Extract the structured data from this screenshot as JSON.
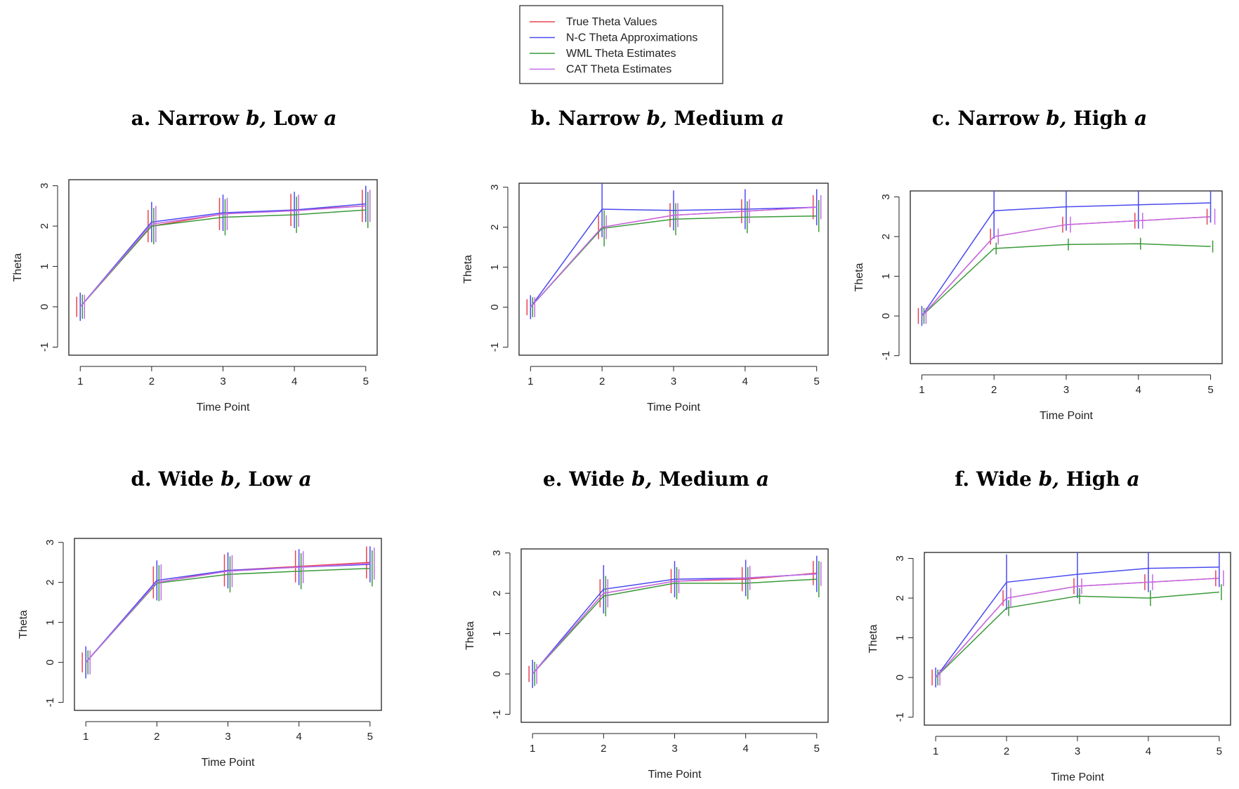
{
  "legend": [
    {
      "name": "True Theta Values",
      "color": "#e8434f"
    },
    {
      "name": "N-C Theta Approximations",
      "color": "#4a4af0"
    },
    {
      "name": "WML Theta Estimates",
      "color": "#3a9a3a"
    },
    {
      "name": "CAT Theta Estimates",
      "color": "#c46be8"
    }
  ],
  "chart_data": [
    {
      "type": "line",
      "title": "a. Narrow b, Low a",
      "x_label": "Time Point",
      "y_label": "Theta",
      "x": [
        1,
        2,
        3,
        4,
        5
      ],
      "xlim": [
        0.84,
        5.16
      ],
      "xticks": [
        1,
        2,
        3,
        4,
        5
      ],
      "ylim": [
        -1.2,
        3.15
      ],
      "yticks": [
        -1,
        0,
        1,
        2,
        3
      ],
      "series": [
        {
          "color": "#e8434f",
          "values": [
            0,
            2,
            2.3,
            2.4,
            2.5
          ],
          "errors": [
            0.25,
            0.4,
            0.4,
            0.4,
            0.4
          ]
        },
        {
          "color": "#4a4af0",
          "values": [
            0,
            2.1,
            2.33,
            2.4,
            2.55
          ],
          "errors": [
            0.35,
            0.5,
            0.45,
            0.45,
            0.45
          ]
        },
        {
          "color": "#3a9a3a",
          "values": [
            0,
            2,
            2.22,
            2.28,
            2.4
          ],
          "errors": [
            0.3,
            0.45,
            0.45,
            0.45,
            0.45
          ]
        },
        {
          "color": "#c46be8",
          "values": [
            0,
            2.05,
            2.3,
            2.38,
            2.5
          ],
          "errors": [
            0.3,
            0.45,
            0.4,
            0.4,
            0.4
          ]
        }
      ]
    },
    {
      "type": "line",
      "title": "b. Narrow b, Medium a",
      "x_label": "Time Point",
      "y_label": "Theta",
      "x": [
        1,
        2,
        3,
        4,
        5
      ],
      "xlim": [
        0.84,
        5.16
      ],
      "xticks": [
        1,
        2,
        3,
        4,
        5
      ],
      "ylim": [
        -1.2,
        3.1
      ],
      "yticks": [
        -1,
        0,
        1,
        2,
        3
      ],
      "series": [
        {
          "color": "#e8434f",
          "values": [
            0,
            2,
            2.3,
            2.4,
            2.5
          ],
          "errors": [
            0.2,
            0.3,
            0.3,
            0.3,
            0.3
          ]
        },
        {
          "color": "#4a4af0",
          "values": [
            0,
            2.45,
            2.42,
            2.45,
            2.5
          ],
          "errors": [
            0.3,
            0.7,
            0.5,
            0.5,
            0.45
          ]
        },
        {
          "color": "#3a9a3a",
          "values": [
            0,
            1.97,
            2.2,
            2.25,
            2.28
          ],
          "errors": [
            0.25,
            0.45,
            0.4,
            0.4,
            0.4
          ]
        },
        {
          "color": "#c46be8",
          "values": [
            0,
            2,
            2.3,
            2.4,
            2.5
          ],
          "errors": [
            0.25,
            0.3,
            0.3,
            0.3,
            0.3
          ]
        }
      ]
    },
    {
      "type": "line",
      "title": "c. Narrow b, High a",
      "x_label": "Time Point",
      "y_label": "Theta",
      "x": [
        1,
        2,
        3,
        4,
        5
      ],
      "xlim": [
        0.84,
        5.16
      ],
      "xticks": [
        1,
        2,
        3,
        4,
        5
      ],
      "ylim": [
        -1.2,
        3.15
      ],
      "yticks": [
        -1,
        0,
        1,
        2,
        3
      ],
      "series": [
        {
          "color": "#e8434f",
          "values": [
            0,
            2,
            2.3,
            2.4,
            2.5
          ],
          "errors": [
            0.2,
            0.2,
            0.2,
            0.2,
            0.2
          ]
        },
        {
          "color": "#4a4af0",
          "values": [
            0,
            2.65,
            2.75,
            2.8,
            2.85
          ],
          "errors": [
            0.25,
            0.7,
            0.6,
            0.6,
            0.5
          ]
        },
        {
          "color": "#3a9a3a",
          "values": [
            0,
            1.7,
            1.8,
            1.82,
            1.75
          ],
          "errors": [
            0.2,
            0.15,
            0.15,
            0.15,
            0.15
          ]
        },
        {
          "color": "#c46be8",
          "values": [
            0,
            2,
            2.3,
            2.4,
            2.5
          ],
          "errors": [
            0.2,
            0.2,
            0.2,
            0.2,
            0.2
          ]
        }
      ]
    },
    {
      "type": "line",
      "title": "d. Wide b, Low a",
      "x_label": "Time Point",
      "y_label": "Theta",
      "x": [
        1,
        2,
        3,
        4,
        5
      ],
      "xlim": [
        0.84,
        5.16
      ],
      "xticks": [
        1,
        2,
        3,
        4,
        5
      ],
      "ylim": [
        -1.2,
        3.1
      ],
      "yticks": [
        -1,
        0,
        1,
        2,
        3
      ],
      "series": [
        {
          "color": "#e8434f",
          "values": [
            0,
            2,
            2.3,
            2.4,
            2.5
          ],
          "errors": [
            0.25,
            0.4,
            0.4,
            0.4,
            0.4
          ]
        },
        {
          "color": "#4a4af0",
          "values": [
            0,
            2.05,
            2.3,
            2.38,
            2.45
          ],
          "errors": [
            0.4,
            0.5,
            0.45,
            0.45,
            0.45
          ]
        },
        {
          "color": "#3a9a3a",
          "values": [
            0,
            1.98,
            2.2,
            2.28,
            2.35
          ],
          "errors": [
            0.3,
            0.45,
            0.45,
            0.45,
            0.45
          ]
        },
        {
          "color": "#c46be8",
          "values": [
            0,
            2,
            2.28,
            2.38,
            2.47
          ],
          "errors": [
            0.3,
            0.45,
            0.4,
            0.4,
            0.4
          ]
        }
      ]
    },
    {
      "type": "line",
      "title": "e. Wide b, Medium a",
      "x_label": "Time Point",
      "y_label": "Theta",
      "x": [
        1,
        2,
        3,
        4,
        5
      ],
      "xlim": [
        0.84,
        5.16
      ],
      "xticks": [
        1,
        2,
        3,
        4,
        5
      ],
      "ylim": [
        -1.2,
        3.1
      ],
      "yticks": [
        -1,
        0,
        1,
        2,
        3
      ],
      "series": [
        {
          "color": "#e8434f",
          "values": [
            0,
            2,
            2.3,
            2.35,
            2.5
          ],
          "errors": [
            0.2,
            0.35,
            0.3,
            0.3,
            0.3
          ]
        },
        {
          "color": "#4a4af0",
          "values": [
            0,
            2.1,
            2.35,
            2.38,
            2.48
          ],
          "errors": [
            0.35,
            0.6,
            0.45,
            0.45,
            0.45
          ]
        },
        {
          "color": "#3a9a3a",
          "values": [
            0,
            1.93,
            2.25,
            2.25,
            2.35
          ],
          "errors": [
            0.3,
            0.5,
            0.4,
            0.4,
            0.45
          ]
        },
        {
          "color": "#c46be8",
          "values": [
            0,
            2,
            2.3,
            2.38,
            2.48
          ],
          "errors": [
            0.25,
            0.35,
            0.3,
            0.3,
            0.3
          ]
        }
      ]
    },
    {
      "type": "line",
      "title": "f. Wide b, High a",
      "x_label": "Time Point",
      "y_label": "Theta",
      "x": [
        1,
        2,
        3,
        4,
        5
      ],
      "xlim": [
        0.84,
        5.16
      ],
      "xticks": [
        1,
        2,
        3,
        4,
        5
      ],
      "ylim": [
        -1.2,
        3.15
      ],
      "yticks": [
        -1,
        0,
        1,
        2,
        3
      ],
      "series": [
        {
          "color": "#e8434f",
          "values": [
            0,
            2,
            2.3,
            2.4,
            2.5
          ],
          "errors": [
            0.2,
            0.2,
            0.2,
            0.2,
            0.2
          ]
        },
        {
          "color": "#4a4af0",
          "values": [
            0,
            2.4,
            2.6,
            2.75,
            2.78
          ],
          "errors": [
            0.25,
            0.7,
            0.6,
            0.6,
            0.5
          ]
        },
        {
          "color": "#3a9a3a",
          "values": [
            0,
            1.75,
            2.05,
            2,
            2.15
          ],
          "errors": [
            0.2,
            0.2,
            0.2,
            0.2,
            0.2
          ]
        },
        {
          "color": "#c46be8",
          "values": [
            0,
            2,
            2.3,
            2.4,
            2.5
          ],
          "errors": [
            0.2,
            0.25,
            0.2,
            0.2,
            0.2
          ]
        }
      ]
    }
  ]
}
